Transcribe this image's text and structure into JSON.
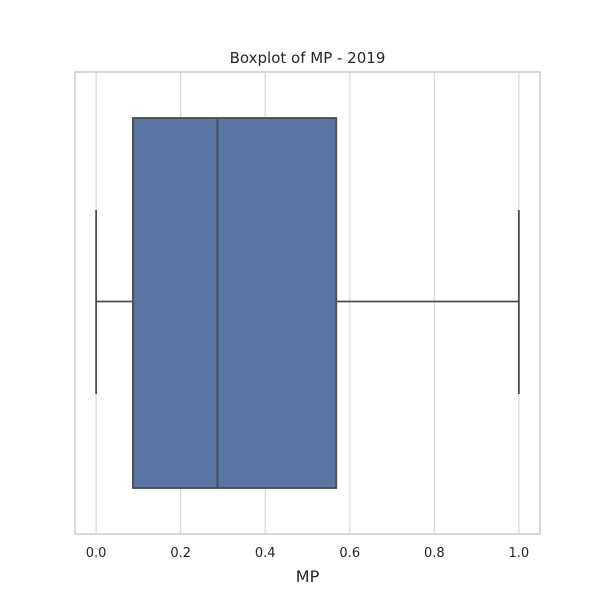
{
  "chart_data": {
    "type": "boxplot",
    "title": "Boxplot of MP - 2019",
    "xlabel": "MP",
    "ylabel": "",
    "xlim": [
      -0.05,
      1.05
    ],
    "xticks": [
      0.0,
      0.2,
      0.4,
      0.6,
      0.8,
      1.0
    ],
    "xtick_labels": [
      "0.0",
      "0.2",
      "0.4",
      "0.6",
      "0.8",
      "1.0"
    ],
    "grid": "vertical",
    "orientation": "horizontal",
    "box": {
      "whisker_low": 0.0,
      "q1": 0.087,
      "median": 0.287,
      "q3": 0.568,
      "whisker_high": 1.0
    },
    "colors": {
      "box_fill": "#5975a4",
      "line": "#4c4c4c",
      "grid": "#d9d9d9",
      "frame": "#cccccc"
    }
  }
}
